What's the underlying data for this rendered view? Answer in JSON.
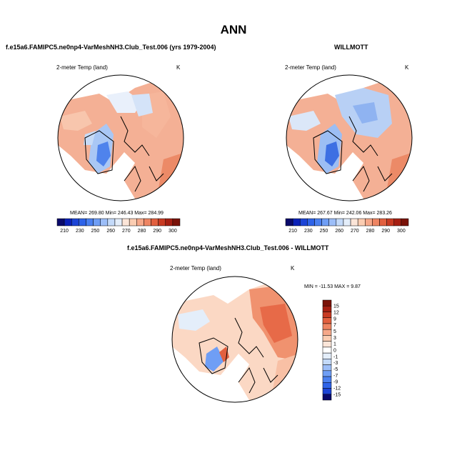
{
  "page": {
    "title": "ANN",
    "model_title": "f.e15a6.FAMIPC5.ne0np4-VarMeshNH3.Club_Test.006 (yrs 1979-2004)",
    "obs_title": "WILLMOTT",
    "diff_title": "f.e15a6.FAMIPC5.ne0np4-VarMeshNH3.Club_Test.006 - WILLMOTT"
  },
  "chart_data": [
    {
      "type": "heatmap",
      "id": "model",
      "variable_label": "2-meter Temp (land)",
      "units": "K",
      "stats_text": "MEAN= 269.80  Min= 246.43  Max= 284.99",
      "stats": {
        "mean": 269.8,
        "min": 246.43,
        "max": 284.99
      },
      "colorbar": {
        "orientation": "horizontal",
        "tick_labels": [
          "210",
          "230",
          "250",
          "260",
          "270",
          "280",
          "290",
          "300"
        ],
        "colors": [
          "#0a0a6b",
          "#0b21b8",
          "#1c44d6",
          "#2e63e8",
          "#4a80f0",
          "#6f9ef5",
          "#9cbef8",
          "#c4daf9",
          "#e4eefa",
          "#fbe5d8",
          "#fbcdb2",
          "#f6a889",
          "#ee8563",
          "#e2603f",
          "#c83a22",
          "#a61f12",
          "#7a1208"
        ]
      }
    },
    {
      "type": "heatmap",
      "id": "obs",
      "variable_label": "2-meter Temp (land)",
      "units": "K",
      "stats_text": "MEAN= 267.67  Min= 242.06  Max= 283.26",
      "stats": {
        "mean": 267.67,
        "min": 242.06,
        "max": 283.26
      },
      "colorbar": {
        "orientation": "horizontal",
        "tick_labels": [
          "210",
          "230",
          "250",
          "260",
          "270",
          "280",
          "290",
          "300"
        ],
        "colors": [
          "#0a0a6b",
          "#0b21b8",
          "#1c44d6",
          "#2e63e8",
          "#4a80f0",
          "#6f9ef5",
          "#9cbef8",
          "#c4daf9",
          "#e4eefa",
          "#fbe5d8",
          "#fbcdb2",
          "#f6a889",
          "#ee8563",
          "#e2603f",
          "#c83a22",
          "#a61f12",
          "#7a1208"
        ]
      }
    },
    {
      "type": "heatmap",
      "id": "diff",
      "variable_label": "2-meter Temp (land)",
      "units": "K",
      "stats_text": "MIN = -11.53 MAX =   9.87",
      "stats": {
        "min": -11.53,
        "max": 9.87
      },
      "colorbar": {
        "orientation": "vertical",
        "tick_labels": [
          "15",
          "12",
          "9",
          "7",
          "5",
          "3",
          "1",
          "0",
          "-1",
          "-3",
          "-5",
          "-7",
          "-9",
          "-12",
          "-15"
        ],
        "colors": [
          "#7a1208",
          "#a61f12",
          "#c83a22",
          "#e2603f",
          "#ee8563",
          "#f6a889",
          "#fbcdb2",
          "#fbe5d8",
          "#ffffff",
          "#e4eefa",
          "#c4daf9",
          "#9cbef8",
          "#6f9ef5",
          "#4a80f0",
          "#2e63e8",
          "#1c44d6",
          "#0a0a6b"
        ]
      }
    }
  ]
}
